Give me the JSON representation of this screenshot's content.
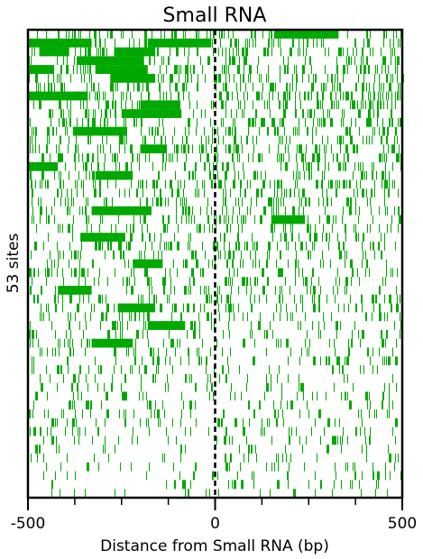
{
  "chart_data": {
    "type": "heatmap",
    "title": "Small RNA",
    "xlabel": "Distance from Small RNA (bp)",
    "ylabel": "53 sites",
    "xlim": [
      -500,
      500
    ],
    "row_count": 53,
    "x_ticks": [
      {
        "value": -500,
        "label": "-500"
      },
      {
        "value": 0,
        "label": "0"
      },
      {
        "value": 500,
        "label": "500"
      }
    ],
    "x_minor_ticks": [
      -375,
      -250,
      -125,
      125,
      250,
      375
    ],
    "center_line": {
      "value": 0,
      "style": "dashed"
    },
    "colors": {
      "fill": "#00a800",
      "background": "#ffffff",
      "axis": "#000000"
    },
    "dense_blocks": [
      {
        "row": 1,
        "start": -500,
        "end": -330
      },
      {
        "row": 1,
        "start": -180,
        "end": -10
      },
      {
        "row": 0,
        "start": 160,
        "end": 330
      },
      {
        "row": 2,
        "start": -470,
        "end": -390
      },
      {
        "row": 2,
        "start": -270,
        "end": -160
      },
      {
        "row": 3,
        "start": -370,
        "end": -190
      },
      {
        "row": 4,
        "start": -500,
        "end": -430
      },
      {
        "row": 4,
        "start": -320,
        "end": -180
      },
      {
        "row": 5,
        "start": -280,
        "end": -160
      },
      {
        "row": 7,
        "start": -500,
        "end": -340
      },
      {
        "row": 8,
        "start": -200,
        "end": -100
      },
      {
        "row": 9,
        "start": -250,
        "end": -90
      },
      {
        "row": 11,
        "start": -380,
        "end": -240
      },
      {
        "row": 13,
        "start": -200,
        "end": -130
      },
      {
        "row": 15,
        "start": -500,
        "end": -420
      },
      {
        "row": 16,
        "start": -320,
        "end": -220
      },
      {
        "row": 20,
        "start": -330,
        "end": -170
      },
      {
        "row": 21,
        "start": 150,
        "end": 240
      },
      {
        "row": 23,
        "start": -360,
        "end": -240
      },
      {
        "row": 26,
        "start": -220,
        "end": -140
      },
      {
        "row": 29,
        "start": -420,
        "end": -330
      },
      {
        "row": 31,
        "start": -260,
        "end": -160
      },
      {
        "row": 33,
        "start": -180,
        "end": -80
      },
      {
        "row": 35,
        "start": -330,
        "end": -220
      }
    ]
  }
}
